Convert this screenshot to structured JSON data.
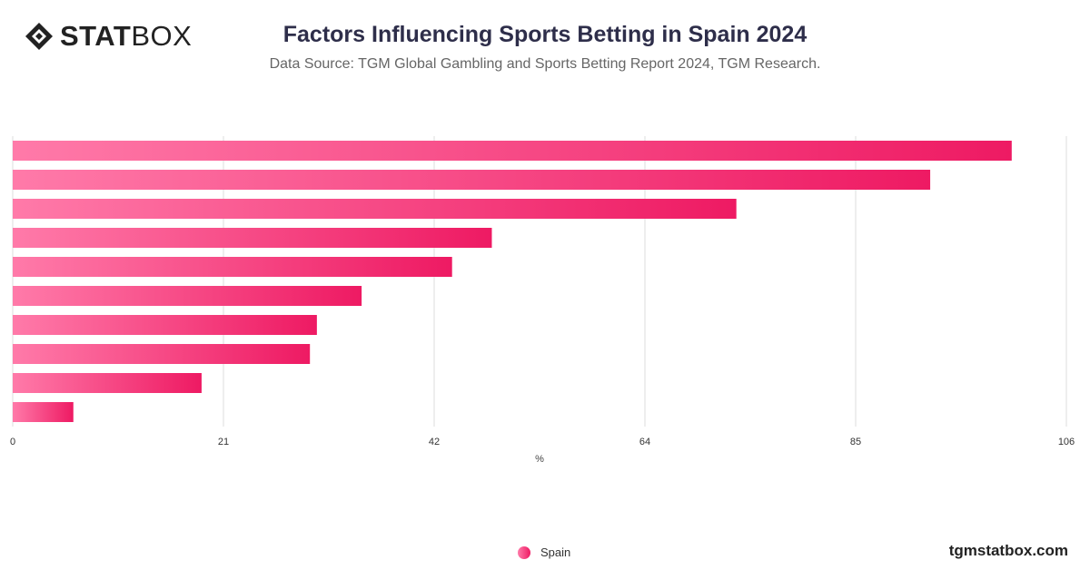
{
  "header": {
    "logo_text_bold": "STAT",
    "logo_text_light": "BOX",
    "logo_icon": "statbox-diamond-icon",
    "title": "Factors Influencing Sports Betting in Spain 2024",
    "subtitle": "Data Source: TGM Global Gambling and Sports Betting Report 2024, TGM Research."
  },
  "footer": {
    "legend_label": "Spain",
    "watermark": "tgmstatbox.com"
  },
  "colors": {
    "bar_gradient_start": "#ff7aa9",
    "bar_gradient_end": "#ee1a63",
    "grid": "#dddddd",
    "axis_text": "#333333"
  },
  "chart_data": {
    "type": "bar",
    "orientation": "horizontal",
    "title": "Factors Influencing Sports Betting in Spain 2024",
    "xlabel": "%",
    "ylabel": "",
    "xlim": [
      0,
      106
    ],
    "x_ticks": [
      "0",
      "21",
      "42",
      "64",
      "85",
      "106"
    ],
    "grid": true,
    "legend_position": "bottom-center",
    "category_labels_visible": false,
    "series": [
      {
        "name": "Spain",
        "values": [
          100.5,
          92.3,
          72.8,
          48.2,
          44.2,
          35.1,
          30.6,
          29.9,
          19.0,
          6.1
        ]
      }
    ]
  }
}
